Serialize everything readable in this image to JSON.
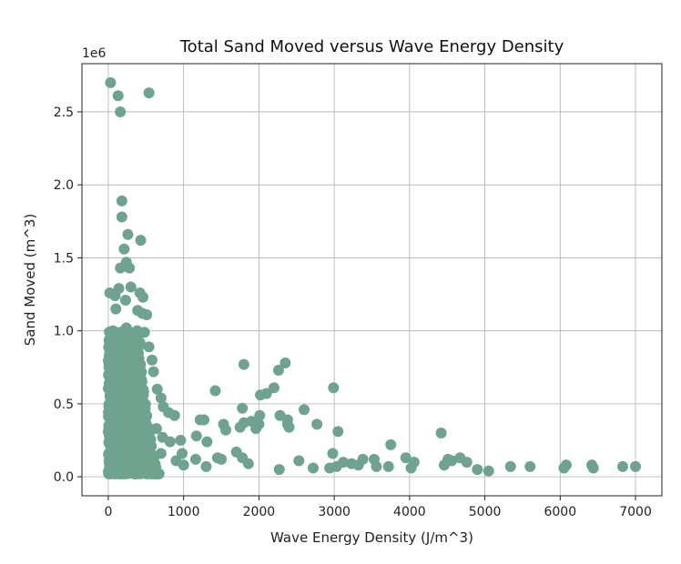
{
  "chart_data": {
    "type": "scatter",
    "title": "Total Sand Moved versus Wave Energy Density",
    "xlabel": "Wave Energy Density (J/m^3)",
    "ylabel": "Sand Moved (m^3)",
    "y_offset_label": "1e6",
    "xlim": [
      -350,
      7350
    ],
    "ylim": [
      -130000,
      2830000
    ],
    "xticks": [
      0,
      1000,
      2000,
      3000,
      4000,
      5000,
      6000,
      7000
    ],
    "xtick_labels": [
      "0",
      "1000",
      "2000",
      "3000",
      "4000",
      "5000",
      "6000",
      "7000"
    ],
    "yticks": [
      0,
      500000,
      1000000,
      1500000,
      2000000,
      2500000
    ],
    "ytick_labels": [
      "0.0",
      "0.5",
      "1.0",
      "1.5",
      "2.0",
      "2.5"
    ],
    "grid": true,
    "marker_color": "#6fa38f",
    "points": [
      [
        30,
        2700000
      ],
      [
        130,
        2610000
      ],
      [
        160,
        2500000
      ],
      [
        540,
        2630000
      ],
      [
        180,
        1890000
      ],
      [
        180,
        1780000
      ],
      [
        260,
        1660000
      ],
      [
        430,
        1620000
      ],
      [
        210,
        1560000
      ],
      [
        240,
        1470000
      ],
      [
        280,
        1430000
      ],
      [
        160,
        1430000
      ],
      [
        20,
        1260000
      ],
      [
        140,
        1290000
      ],
      [
        300,
        1300000
      ],
      [
        420,
        1260000
      ],
      [
        90,
        1240000
      ],
      [
        230,
        1210000
      ],
      [
        460,
        1230000
      ],
      [
        100,
        1150000
      ],
      [
        390,
        1140000
      ],
      [
        450,
        1120000
      ],
      [
        510,
        1110000
      ],
      [
        60,
        1000000
      ],
      [
        240,
        1020000
      ],
      [
        480,
        990000
      ],
      [
        420,
        920000
      ],
      [
        540,
        890000
      ],
      [
        580,
        800000
      ],
      [
        600,
        720000
      ],
      [
        650,
        600000
      ],
      [
        700,
        540000
      ],
      [
        730,
        480000
      ],
      [
        800,
        440000
      ],
      [
        880,
        420000
      ],
      [
        640,
        330000
      ],
      [
        720,
        270000
      ],
      [
        820,
        240000
      ],
      [
        960,
        250000
      ],
      [
        980,
        160000
      ],
      [
        700,
        160000
      ],
      [
        900,
        110000
      ],
      [
        1000,
        80000
      ],
      [
        1800,
        770000
      ],
      [
        1420,
        590000
      ],
      [
        1780,
        470000
      ],
      [
        2020,
        560000
      ],
      [
        2100,
        570000
      ],
      [
        2200,
        610000
      ],
      [
        2260,
        730000
      ],
      [
        2350,
        780000
      ],
      [
        1220,
        390000
      ],
      [
        1270,
        390000
      ],
      [
        1530,
        360000
      ],
      [
        1560,
        320000
      ],
      [
        1750,
        340000
      ],
      [
        1800,
        370000
      ],
      [
        1900,
        380000
      ],
      [
        2010,
        420000
      ],
      [
        2000,
        360000
      ],
      [
        2380,
        390000
      ],
      [
        2400,
        340000
      ],
      [
        2600,
        460000
      ],
      [
        2770,
        360000
      ],
      [
        2990,
        610000
      ],
      [
        3050,
        310000
      ],
      [
        1170,
        280000
      ],
      [
        1310,
        240000
      ],
      [
        1700,
        170000
      ],
      [
        1780,
        130000
      ],
      [
        1450,
        130000
      ],
      [
        1500,
        120000
      ],
      [
        1160,
        120000
      ],
      [
        1300,
        70000
      ],
      [
        1860,
        90000
      ],
      [
        2270,
        50000
      ],
      [
        2530,
        110000
      ],
      [
        2720,
        60000
      ],
      [
        2940,
        60000
      ],
      [
        2980,
        160000
      ],
      [
        3030,
        70000
      ],
      [
        3120,
        100000
      ],
      [
        3230,
        90000
      ],
      [
        3320,
        80000
      ],
      [
        3380,
        120000
      ],
      [
        3530,
        120000
      ],
      [
        3560,
        70000
      ],
      [
        3720,
        70000
      ],
      [
        3750,
        220000
      ],
      [
        3950,
        130000
      ],
      [
        4020,
        60000
      ],
      [
        4060,
        100000
      ],
      [
        4420,
        300000
      ],
      [
        4460,
        80000
      ],
      [
        4510,
        120000
      ],
      [
        4560,
        110000
      ],
      [
        4670,
        130000
      ],
      [
        4760,
        100000
      ],
      [
        4900,
        50000
      ],
      [
        5050,
        40000
      ],
      [
        5340,
        70000
      ],
      [
        5600,
        70000
      ],
      [
        6050,
        60000
      ],
      [
        6080,
        80000
      ],
      [
        6420,
        80000
      ],
      [
        6440,
        60000
      ],
      [
        6830,
        70000
      ],
      [
        7000,
        70000
      ],
      [
        2380,
        360000
      ],
      [
        1960,
        330000
      ],
      [
        2280,
        420000
      ]
    ],
    "dense_cluster": {
      "x_range": [
        0,
        700
      ],
      "y_range": [
        20000,
        1000000
      ]
    }
  }
}
